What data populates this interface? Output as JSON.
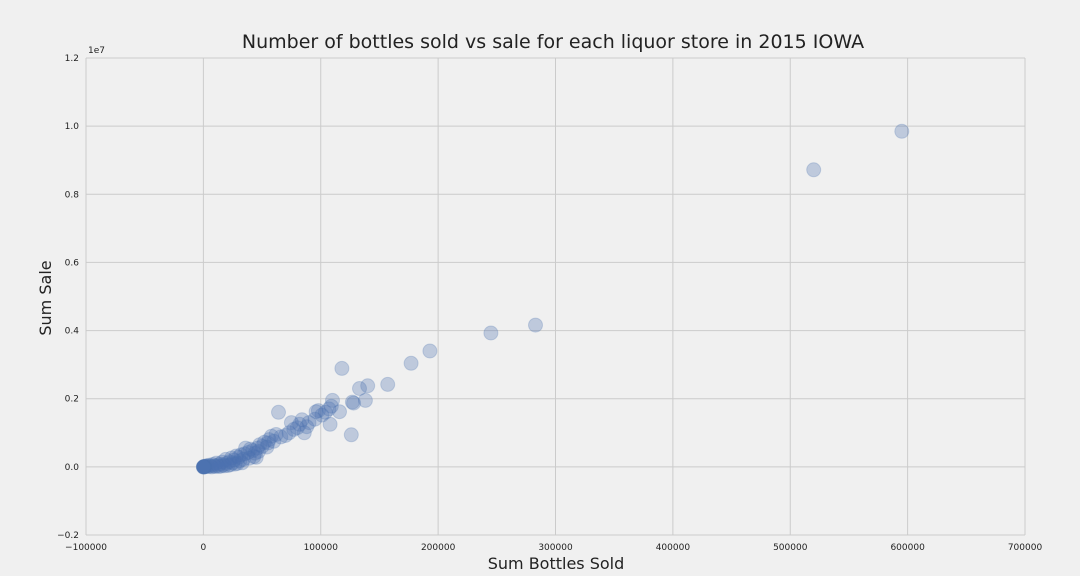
{
  "chart_data": {
    "type": "scatter",
    "title": "Number of bottles sold vs sale for each liquor store in 2015 IOWA",
    "xlabel": "Sum Bottles Sold",
    "ylabel": "Sum Sale",
    "y_offset_label": "1e7",
    "xlim": [
      -100000,
      700000
    ],
    "ylim": [
      -0.2,
      1.2
    ],
    "x_ticks": [
      -100000,
      0,
      100000,
      200000,
      300000,
      400000,
      500000,
      600000,
      700000
    ],
    "x_tick_labels": [
      "−100000",
      "0",
      "100000",
      "200000",
      "300000",
      "400000",
      "500000",
      "600000",
      "700000"
    ],
    "y_ticks": [
      -0.2,
      0.0,
      0.2,
      0.4,
      0.6,
      0.8,
      1.0,
      1.2
    ],
    "y_tick_labels": [
      "−0.2",
      "0.0",
      "0.2",
      "0.4",
      "0.6",
      "0.8",
      "1.0",
      "1.2"
    ],
    "grid": true,
    "color": "#4c72b0",
    "points": [
      [
        595000,
        0.985
      ],
      [
        520000,
        0.872
      ],
      [
        283000,
        0.416
      ],
      [
        245000,
        0.393
      ],
      [
        193000,
        0.34
      ],
      [
        177000,
        0.304
      ],
      [
        157000,
        0.242
      ],
      [
        140000,
        0.238
      ],
      [
        133000,
        0.23
      ],
      [
        118000,
        0.289
      ],
      [
        138000,
        0.195
      ],
      [
        127000,
        0.19
      ],
      [
        128000,
        0.187
      ],
      [
        126000,
        0.094
      ],
      [
        116000,
        0.162
      ],
      [
        110000,
        0.195
      ],
      [
        109000,
        0.178
      ],
      [
        107000,
        0.17
      ],
      [
        108000,
        0.125
      ],
      [
        104000,
        0.16
      ],
      [
        101000,
        0.152
      ],
      [
        98000,
        0.165
      ],
      [
        96000,
        0.162
      ],
      [
        95000,
        0.14
      ],
      [
        90000,
        0.13
      ],
      [
        88000,
        0.118
      ],
      [
        86000,
        0.1
      ],
      [
        84000,
        0.138
      ],
      [
        82000,
        0.125
      ],
      [
        80000,
        0.115
      ],
      [
        77000,
        0.11
      ],
      [
        75000,
        0.13
      ],
      [
        73000,
        0.1
      ],
      [
        70000,
        0.092
      ],
      [
        66000,
        0.088
      ],
      [
        64000,
        0.16
      ],
      [
        62000,
        0.095
      ],
      [
        58000,
        0.09
      ],
      [
        56000,
        0.08
      ],
      [
        55000,
        0.07
      ],
      [
        52000,
        0.072
      ],
      [
        50000,
        0.06
      ],
      [
        48000,
        0.065
      ],
      [
        46000,
        0.055
      ],
      [
        44000,
        0.04
      ],
      [
        45000,
        0.028
      ],
      [
        42000,
        0.048
      ],
      [
        40000,
        0.052
      ],
      [
        38000,
        0.042
      ],
      [
        36000,
        0.055
      ],
      [
        35000,
        0.038
      ],
      [
        34000,
        0.022
      ],
      [
        32000,
        0.035
      ],
      [
        31000,
        0.018
      ],
      [
        30000,
        0.028
      ],
      [
        28000,
        0.032
      ],
      [
        26000,
        0.02
      ],
      [
        25000,
        0.012
      ],
      [
        24000,
        0.026
      ],
      [
        22000,
        0.015
      ],
      [
        20000,
        0.01
      ],
      [
        19000,
        0.022
      ],
      [
        17000,
        0.006
      ],
      [
        16000,
        0.014
      ],
      [
        14000,
        0.008
      ],
      [
        12000,
        0.004
      ],
      [
        11000,
        0.011
      ],
      [
        9000,
        0.003
      ],
      [
        8000,
        0.007
      ],
      [
        6000,
        0.002
      ],
      [
        5000,
        0.005
      ],
      [
        4000,
        0.001
      ],
      [
        3000,
        0.003
      ],
      [
        2000,
        0.001
      ],
      [
        1500,
        0.002
      ],
      [
        1000,
        0.0
      ],
      [
        700,
        0.001
      ],
      [
        400,
        0.0
      ],
      [
        200,
        0.0
      ],
      [
        100,
        0.0
      ],
      [
        60000,
        0.075
      ],
      [
        54000,
        0.058
      ],
      [
        47000,
        0.045
      ],
      [
        43000,
        0.03
      ],
      [
        39000,
        0.025
      ],
      [
        33000,
        0.012
      ],
      [
        29000,
        0.01
      ],
      [
        27000,
        0.008
      ],
      [
        23000,
        0.006
      ],
      [
        21000,
        0.004
      ],
      [
        18000,
        0.003
      ],
      [
        15000,
        0.002
      ],
      [
        13000,
        0.001
      ],
      [
        10000,
        0.001
      ],
      [
        7000,
        0.0
      ]
    ],
    "solid_points": [
      [
        0,
        0.0
      ]
    ]
  }
}
